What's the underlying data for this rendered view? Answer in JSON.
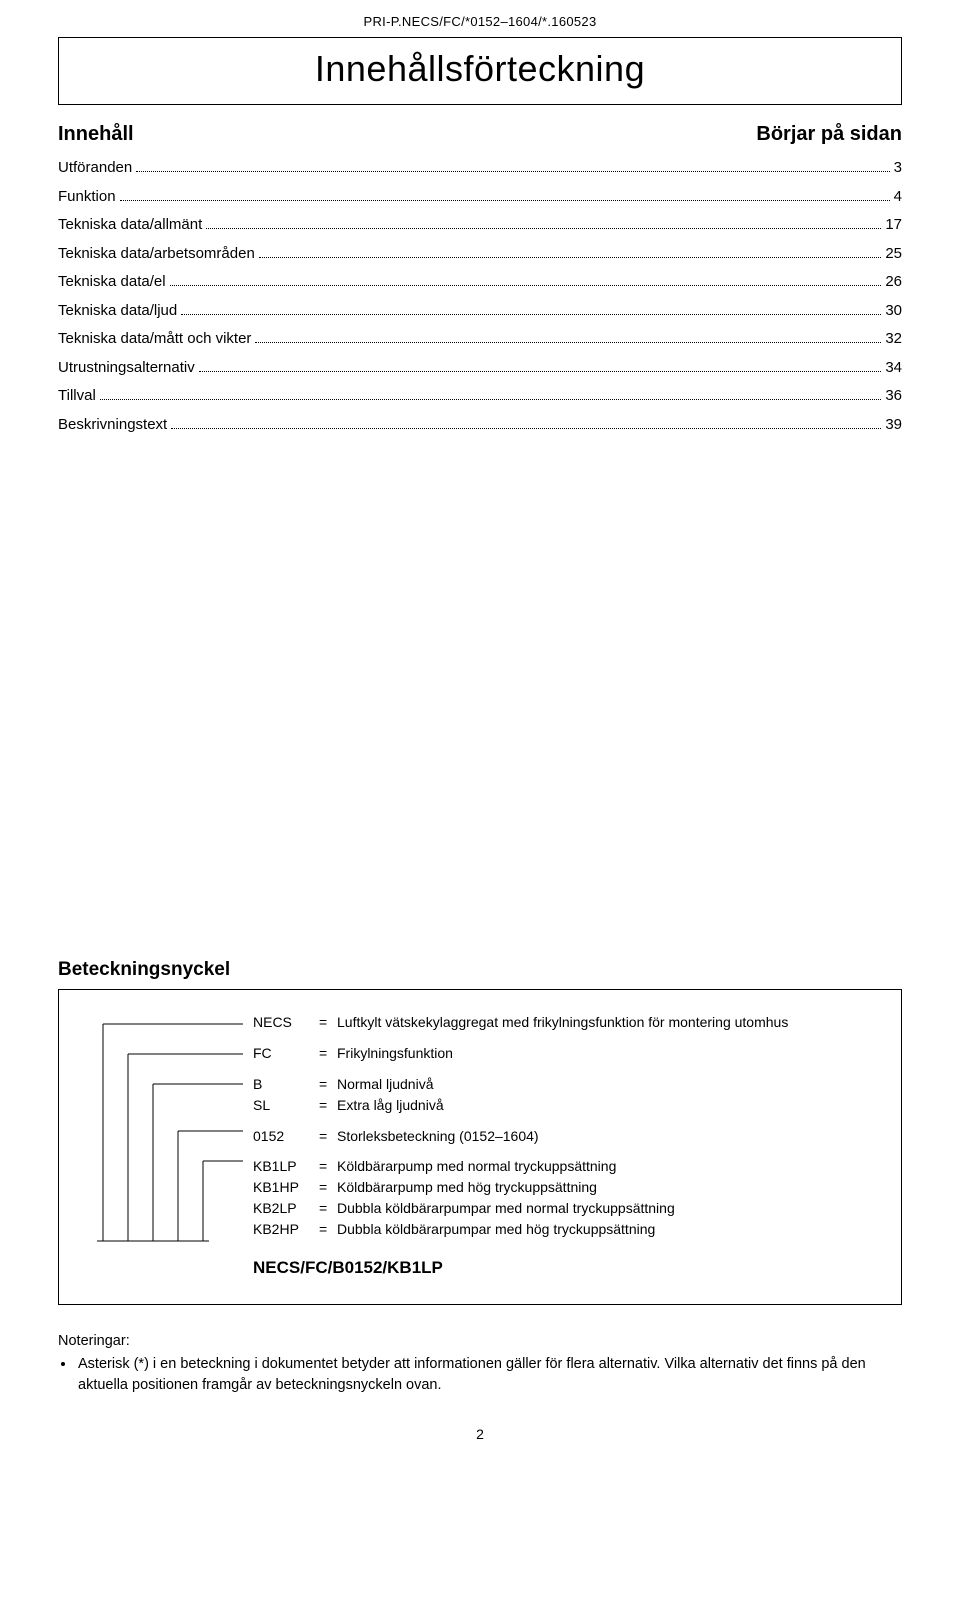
{
  "header_code": "PRI-P.NECS/FC/*0152–1604/*.160523",
  "title": "Innehållsförteckning",
  "toc_header_left": "Innehåll",
  "toc_header_right": "Börjar på sidan",
  "toc": [
    {
      "label": "Utföranden",
      "page": "3"
    },
    {
      "label": "Funktion",
      "page": "4"
    },
    {
      "label": "Tekniska data/allmänt",
      "page": "17"
    },
    {
      "label": "Tekniska data/arbetsområden",
      "page": "25"
    },
    {
      "label": "Tekniska data/el",
      "page": "26"
    },
    {
      "label": "Tekniska data/ljud",
      "page": "30"
    },
    {
      "label": "Tekniska data/mått och vikter",
      "page": "32"
    },
    {
      "label": "Utrustningsalternativ",
      "page": "34"
    },
    {
      "label": "Tillval",
      "page": "36"
    },
    {
      "label": "Beskrivningstext",
      "page": "39"
    }
  ],
  "key_heading": "Beteckningsnyckel",
  "key_groups": [
    [
      {
        "code": "NECS",
        "desc": "Luftkylt vätskekylaggregat med frikylningsfunktion för montering utomhus"
      }
    ],
    [
      {
        "code": "FC",
        "desc": "Frikylningsfunktion"
      }
    ],
    [
      {
        "code": "B",
        "desc": "Normal ljudnivå"
      },
      {
        "code": "SL",
        "desc": "Extra låg ljudnivå"
      }
    ],
    [
      {
        "code": "0152",
        "desc": "Storleksbeteckning (0152–1604)"
      }
    ],
    [
      {
        "code": "KB1LP",
        "desc": "Köldbärarpump med normal tryckuppsättning"
      },
      {
        "code": "KB1HP",
        "desc": "Köldbärarpump med hög tryckuppsättning"
      },
      {
        "code": "KB2LP",
        "desc": "Dubbla köldbärarpumpar med normal tryckuppsättning"
      },
      {
        "code": "KB2HP",
        "desc": "Dubbla köldbärarpumpar med hög tryckuppsättning"
      }
    ]
  ],
  "key_root": "NECS/FC/B0152/KB1LP",
  "notes_title": "Noteringar:",
  "notes_item": "Asterisk (*) i en beteckning i dokumentet betyder att informationen gäller för flera alternativ. Vilka alternativ det finns på den aktuella positionen framgår av beteckningsnyckeln ovan.",
  "page_number": "2",
  "colors": {
    "text": "#000000",
    "bg": "#ffffff",
    "border": "#000000"
  }
}
